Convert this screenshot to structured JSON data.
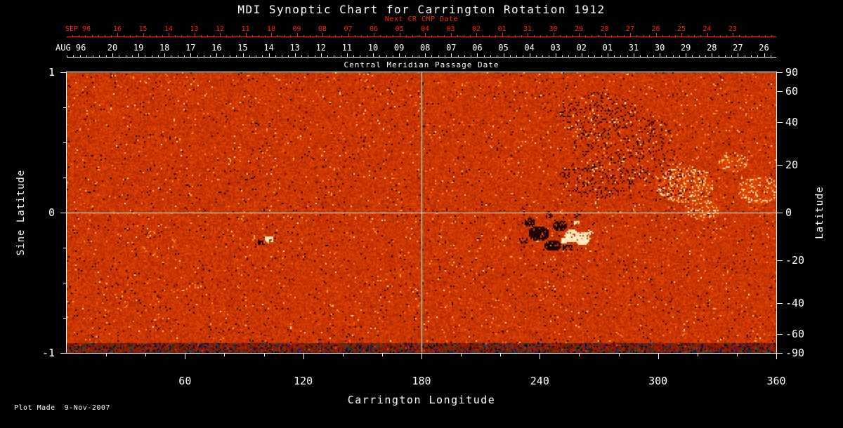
{
  "title": "MDI Synoptic Chart for Carrington Rotation 1912",
  "footer_note": "Plot Made  9-Nov-2007",
  "colors": {
    "background": "#000000",
    "next_cr_axis": "#ff2600",
    "axis": "#ffffff",
    "grid": "#ffffff"
  },
  "axes": {
    "next_cr": {
      "label": "Next CR CMP Date",
      "month": "SEP 96",
      "tick_labels": [
        "16",
        "15",
        "14",
        "13",
        "12",
        "11",
        "10",
        "09",
        "08",
        "07",
        "06",
        "05",
        "04",
        "03",
        "02",
        "01",
        "31",
        "30",
        "29",
        "28",
        "27",
        "26",
        "25",
        "24",
        "23"
      ]
    },
    "cmp": {
      "label": "Central Meridian Passage Date",
      "month": "AUG 96",
      "tick_labels": [
        "20",
        "19",
        "18",
        "17",
        "16",
        "15",
        "14",
        "13",
        "12",
        "11",
        "10",
        "09",
        "08",
        "07",
        "06",
        "05",
        "04",
        "03",
        "02",
        "01",
        "31",
        "30",
        "29",
        "28",
        "27",
        "26"
      ]
    },
    "left": {
      "label": "Sine Latitude",
      "tick_labels": [
        "1",
        "0",
        "-1"
      ],
      "tick_values": [
        1,
        0,
        -1
      ]
    },
    "right": {
      "label": "Latitude",
      "tick_labels": [
        "90",
        "60",
        "40",
        "20",
        "0",
        "-20",
        "-40",
        "-60",
        "-90"
      ],
      "tick_values": [
        90,
        60,
        40,
        20,
        0,
        -20,
        -40,
        -60,
        -90
      ]
    },
    "bottom": {
      "label": "Carrington Longitude",
      "tick_labels": [
        "60",
        "120",
        "180",
        "240",
        "300",
        "360"
      ],
      "tick_values": [
        60,
        120,
        180,
        240,
        300,
        360
      ]
    }
  },
  "chart_data": {
    "type": "heatmap",
    "title": "MDI Synoptic Chart for Carrington Rotation 1912",
    "carrington_rotation": 1912,
    "xlabel": "Carrington Longitude",
    "ylabel": "Sine Latitude",
    "ylabel_right": "Latitude",
    "xlim": [
      0,
      360
    ],
    "ylim": [
      -1,
      1
    ],
    "x_ticks": [
      60,
      120,
      180,
      240,
      300,
      360
    ],
    "y_ticks_sine_latitude": [
      1,
      0,
      -1
    ],
    "y_ticks_latitude": [
      90,
      60,
      40,
      20,
      0,
      -20,
      -40,
      -60,
      -90
    ],
    "gridlines": {
      "x": [
        180
      ],
      "y": [
        0
      ]
    },
    "top_axis_next_cr_cmp_dates": {
      "month": "SEP 96",
      "days": [
        16,
        15,
        14,
        13,
        12,
        11,
        10,
        9,
        8,
        7,
        6,
        5,
        4,
        3,
        2,
        1,
        31,
        30,
        29,
        28,
        27,
        26,
        25,
        24,
        23
      ]
    },
    "top_axis_cmp_dates": {
      "month": "AUG 96",
      "days": [
        20,
        19,
        18,
        17,
        16,
        15,
        14,
        13,
        12,
        11,
        10,
        9,
        8,
        7,
        6,
        5,
        4,
        3,
        2,
        1,
        31,
        30,
        29,
        28,
        27,
        26
      ]
    },
    "colormap": "signed magnetic flux: black (strong negative) -> dark red -> orange (weak field) -> yellow -> white (strong positive)",
    "background_field": "mottled orange/red salt-and-pepper weak-field noise over the whole map",
    "features": [
      {
        "feature": "large bipolar active region",
        "longitude_deg": [
          235,
          267
        ],
        "sine_latitude": [
          -0.25,
          -0.02
        ],
        "detail": "dense black negative-polarity patches beside bright white positive-polarity patches"
      },
      {
        "feature": "small active region",
        "longitude_deg": 103,
        "sine_latitude": -0.19,
        "detail": "compact white spot with adjacent dark specks"
      },
      {
        "feature": "dispersed negative flux speckle",
        "longitude_deg": [
          250,
          310
        ],
        "sine_latitude": [
          0.15,
          0.85
        ],
        "detail": "scattered black specks"
      },
      {
        "feature": "dispersed positive flux",
        "longitude_deg": [
          300,
          327
        ],
        "sine_latitude": [
          0.05,
          0.35
        ],
        "detail": "pale yellow-white patches"
      },
      {
        "feature": "dispersed positive flux",
        "longitude_deg": [
          343,
          357
        ],
        "sine_latitude": [
          0.1,
          0.3
        ],
        "detail": "pale patches near right edge"
      },
      {
        "feature": "south polar noise band",
        "longitude_deg": [
          0,
          360
        ],
        "sine_latitude": [
          -1.0,
          -0.93
        ],
        "detail": "multicolored noise artifacts along bottom edge"
      }
    ],
    "plot_made": "9-Nov-2007"
  }
}
